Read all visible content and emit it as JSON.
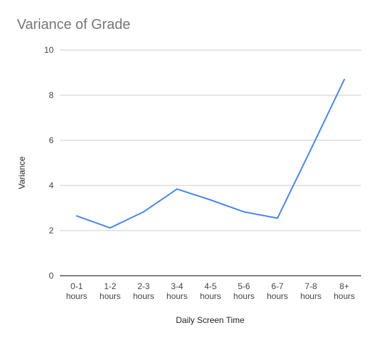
{
  "chart_data": {
    "type": "line",
    "title": "Variance of Grade",
    "xlabel": "Daily Screen Time",
    "ylabel": "Variance",
    "categories": [
      [
        "0-1",
        "hours"
      ],
      [
        "1-2",
        "hours"
      ],
      [
        "2-3",
        "hours"
      ],
      [
        "3-4",
        "hours"
      ],
      [
        "4-5",
        "hours"
      ],
      [
        "5-6",
        "hours"
      ],
      [
        "6-7",
        "hours"
      ],
      [
        "7-8",
        "hours"
      ],
      [
        "8+",
        "hours"
      ]
    ],
    "series": [
      {
        "values": [
          2.65,
          2.12,
          2.83,
          3.84,
          3.36,
          2.83,
          2.55,
          5.6,
          8.7
        ],
        "color": "#4a86e8"
      }
    ],
    "ylim": [
      0,
      10
    ],
    "yticks": [
      0,
      2,
      4,
      6,
      8,
      10
    ],
    "grid": true,
    "gridColor": "#cccccc",
    "axisColor": "#333333"
  }
}
